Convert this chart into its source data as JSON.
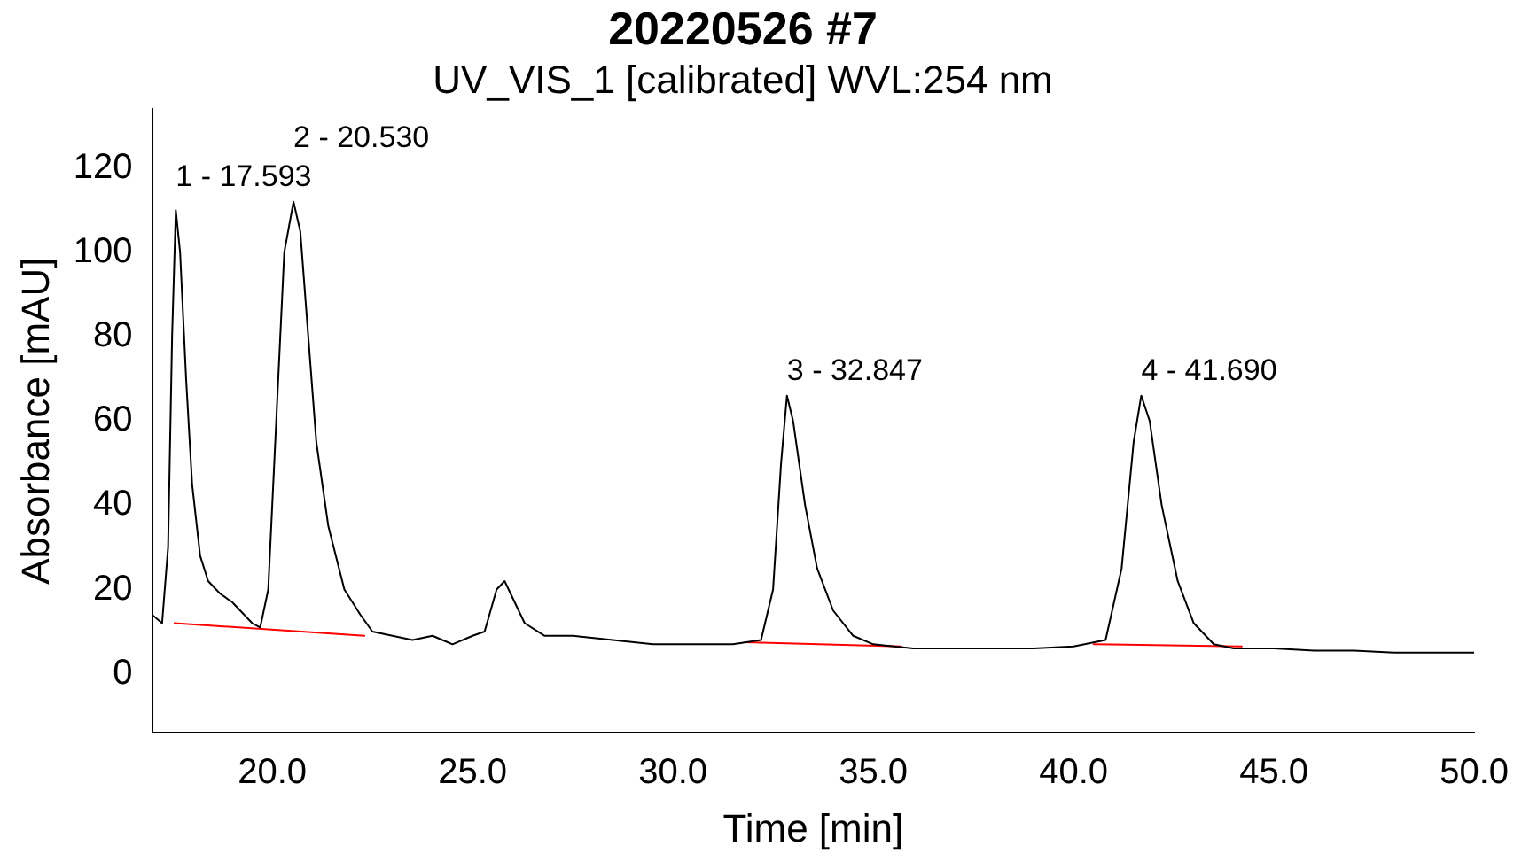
{
  "chart_data": {
    "type": "line",
    "title": "20220526 #7",
    "subtitle": "UV_VIS_1 [calibrated] WVL:254 nm",
    "xlabel": "Time [min]",
    "ylabel": "Absorbance [mAU]",
    "xlim": [
      17,
      50
    ],
    "xticks": [
      {
        "value": 20,
        "label": "20.0"
      },
      {
        "value": 25,
        "label": "25.0"
      },
      {
        "value": 30,
        "label": "30.0"
      },
      {
        "value": 35,
        "label": "35.0"
      },
      {
        "value": 40,
        "label": "40.0"
      },
      {
        "value": 45,
        "label": "45.0"
      },
      {
        "value": 50,
        "label": "50.0"
      }
    ],
    "ylim": [
      -14,
      134
    ],
    "yticks": [
      0,
      20,
      40,
      60,
      80,
      100,
      120
    ],
    "series": [
      {
        "color": "#000000",
        "x": [
          17.0,
          17.25,
          17.4,
          17.5,
          17.593,
          17.7,
          17.85,
          18.0,
          18.2,
          18.4,
          18.7,
          19.0,
          19.3,
          19.5,
          19.7,
          19.9,
          20.1,
          20.3,
          20.53,
          20.7,
          20.9,
          21.1,
          21.4,
          21.8,
          22.2,
          22.5,
          23.0,
          23.5,
          24.0,
          24.5,
          25.0,
          25.3,
          25.6,
          25.8,
          26.0,
          26.3,
          26.8,
          27.5,
          28.5,
          29.5,
          30.5,
          31.5,
          32.2,
          32.5,
          32.7,
          32.847,
          33.0,
          33.3,
          33.6,
          34.0,
          34.5,
          35.0,
          36.0,
          37.0,
          38.0,
          39.0,
          40.0,
          40.8,
          41.2,
          41.5,
          41.69,
          41.9,
          42.2,
          42.6,
          43.0,
          43.5,
          44.0,
          45.0,
          46.0,
          47.0,
          48.0,
          49.0,
          50.0
        ],
        "values": [
          14,
          12,
          30,
          80,
          110,
          100,
          70,
          45,
          28,
          22,
          19,
          17,
          14,
          12,
          11,
          20,
          60,
          100,
          112,
          105,
          80,
          55,
          35,
          20,
          14,
          10,
          9,
          8,
          9,
          7,
          9,
          10,
          20,
          22,
          18,
          12,
          9,
          9,
          8,
          7,
          7,
          7,
          8,
          20,
          50,
          66,
          60,
          40,
          25,
          15,
          9,
          7,
          6,
          6,
          6,
          6,
          6.5,
          8,
          25,
          55,
          66,
          60,
          40,
          22,
          12,
          7,
          6,
          6,
          5.5,
          5.5,
          5,
          5,
          5
        ]
      },
      {
        "color": "#ff0000",
        "x": [
          17.56,
          22.3,
          null,
          31.8,
          35.7,
          null,
          40.5,
          44.2
        ],
        "values": [
          12,
          9,
          null,
          7.5,
          6.5,
          null,
          7,
          6.5
        ]
      }
    ],
    "annotations": [
      {
        "text": "1 - 17.593",
        "x": 17.593,
        "y": 110
      },
      {
        "text": "2 - 20.530",
        "x": 20.53,
        "y": 112
      },
      {
        "text": "3 - 32.847",
        "x": 32.847,
        "y": 66
      },
      {
        "text": "4 - 41.690",
        "x": 41.69,
        "y": 66
      }
    ],
    "grid": false,
    "legend": false,
    "marker": "none",
    "line_style": "solid"
  }
}
